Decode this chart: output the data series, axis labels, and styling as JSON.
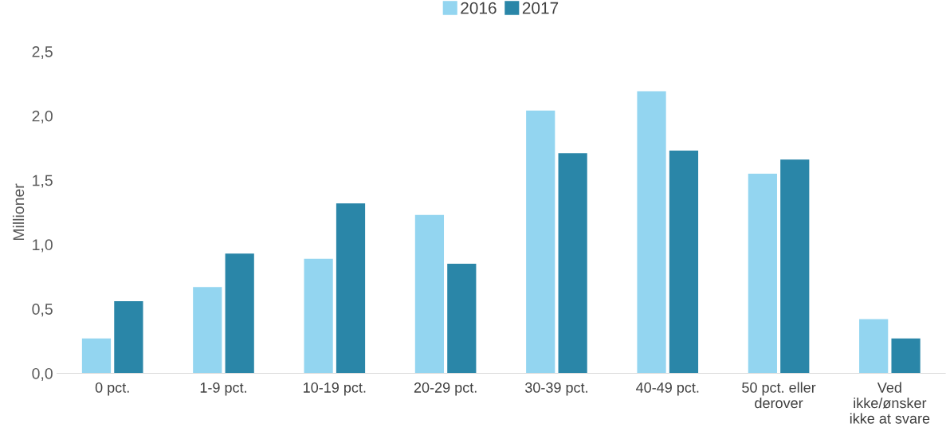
{
  "chart_data": {
    "type": "bar",
    "ylabel": "Millioner",
    "categories": [
      "0 pct.",
      "1-9 pct.",
      "10-19 pct.",
      "20-29 pct.",
      "30-39 pct.",
      "40-49 pct.",
      "50 pct. eller\nderover",
      "Ved\nikke/ønsker\nikke at svare"
    ],
    "series": [
      {
        "name": "2016",
        "color": "#93d5f0",
        "values": [
          0.27,
          0.67,
          0.89,
          1.23,
          2.04,
          2.19,
          1.55,
          0.42
        ]
      },
      {
        "name": "2017",
        "color": "#2a86a8",
        "values": [
          0.56,
          0.93,
          1.32,
          0.85,
          1.71,
          1.73,
          1.66,
          0.27
        ]
      }
    ],
    "ylim": [
      0,
      2.5
    ],
    "yticks": [
      {
        "value": 0,
        "label": "0,0"
      },
      {
        "value": 0.5,
        "label": "0,5"
      },
      {
        "value": 1.0,
        "label": "1,0"
      },
      {
        "value": 1.5,
        "label": "1,5"
      },
      {
        "value": 2.0,
        "label": "2,0"
      },
      {
        "value": 2.5,
        "label": "2,5"
      }
    ],
    "grid": false,
    "legend": "top"
  }
}
